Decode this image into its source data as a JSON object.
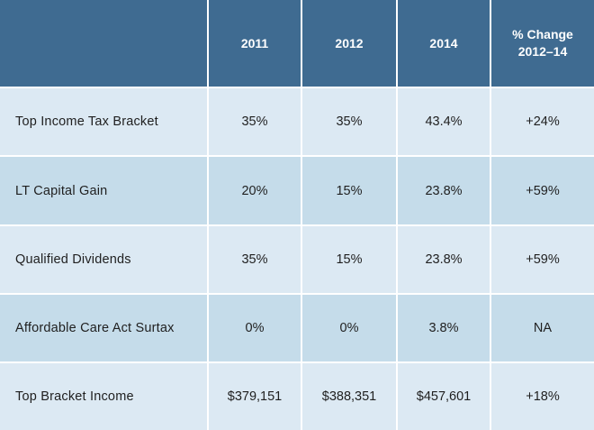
{
  "header": {
    "corner": "",
    "col_2011": "2011",
    "col_2012": "2012",
    "col_2014": "2014",
    "col_change_line1": "% Change",
    "col_change_line2": "2012–14"
  },
  "rows": [
    {
      "label": "Top Income Tax Bracket",
      "v2011": "35%",
      "v2012": "35%",
      "v2014": "43.4%",
      "change": "+24%"
    },
    {
      "label": "LT Capital Gain",
      "v2011": "20%",
      "v2012": "15%",
      "v2014": "23.8%",
      "change": "+59%"
    },
    {
      "label": "Qualified Dividends",
      "v2011": "35%",
      "v2012": "15%",
      "v2014": "23.8%",
      "change": "+59%"
    },
    {
      "label": "Affordable Care Act Surtax",
      "v2011": "0%",
      "v2012": "0%",
      "v2014": "3.8%",
      "change": "NA"
    },
    {
      "label": "Top Bracket Income",
      "v2011": "$379,151",
      "v2012": "$388,351",
      "v2014": "$457,601",
      "change": "+18%"
    }
  ],
  "colors": {
    "header_bg": "#3f6b91",
    "row_light": "#dce9f3",
    "row_dark": "#c5dcea",
    "grid": "#ffffff"
  },
  "chart_data": {
    "type": "table",
    "columns": [
      "",
      "2011",
      "2012",
      "2014",
      "% Change 2012–14"
    ],
    "rows": [
      [
        "Top Income Tax Bracket",
        "35%",
        "35%",
        "43.4%",
        "+24%"
      ],
      [
        "LT Capital Gain",
        "20%",
        "15%",
        "23.8%",
        "+59%"
      ],
      [
        "Qualified Dividends",
        "35%",
        "15%",
        "23.8%",
        "+59%"
      ],
      [
        "Affordable Care Act Surtax",
        "0%",
        "0%",
        "3.8%",
        "NA"
      ],
      [
        "Top Bracket Income",
        "$379,151",
        "$388,351",
        "$457,601",
        "+18%"
      ]
    ]
  }
}
